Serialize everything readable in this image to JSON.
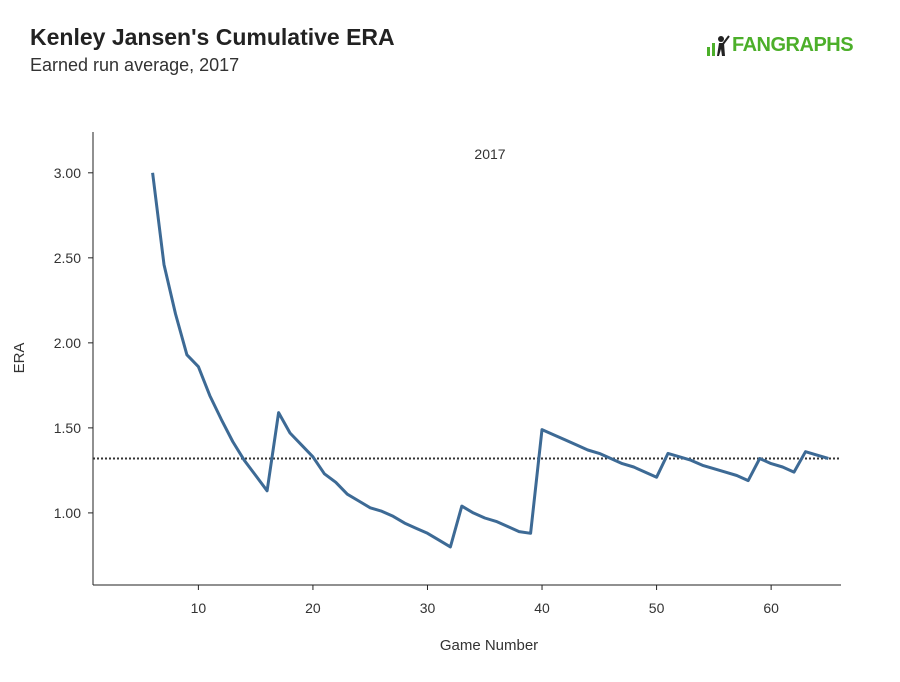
{
  "header": {
    "title": "Kenley Jansen's Cumulative ERA",
    "subtitle": "Earned run average, 2017",
    "logo_text": "FANGRAPHS"
  },
  "chart_data": {
    "type": "line",
    "title": "Kenley Jansen's Cumulative ERA",
    "subtitle": "Earned run average, 2017",
    "xlabel": "Game Number",
    "ylabel": "ERA",
    "annotation": "2017",
    "xlim": [
      0.8,
      66.1
    ],
    "ylim": [
      0.576,
      3.24
    ],
    "xticks": [
      10,
      20,
      30,
      40,
      50,
      60
    ],
    "yticks": [
      1.0,
      1.5,
      2.0,
      2.5,
      3.0
    ],
    "ytick_labels": [
      "1.00",
      "1.50",
      "2.00",
      "2.50",
      "3.00"
    ],
    "reference_line": {
      "value": 1.32,
      "style": "dotted"
    },
    "series": [
      {
        "name": "2017",
        "color": "#3d6a95",
        "x": [
          6,
          7,
          8,
          9,
          10,
          11,
          12,
          13,
          14,
          15,
          16,
          17,
          18,
          19,
          20,
          21,
          22,
          23,
          24,
          25,
          26,
          27,
          28,
          29,
          30,
          31,
          32,
          33,
          34,
          35,
          36,
          37,
          38,
          39,
          40,
          41,
          42,
          43,
          44,
          45,
          46,
          47,
          48,
          49,
          50,
          51,
          52,
          53,
          54,
          55,
          56,
          57,
          58,
          59,
          60,
          61,
          62,
          63,
          64,
          65
        ],
        "values": [
          3.0,
          2.46,
          2.17,
          1.93,
          1.86,
          1.69,
          1.55,
          1.42,
          1.31,
          1.22,
          1.13,
          1.59,
          1.47,
          1.4,
          1.33,
          1.23,
          1.18,
          1.11,
          1.07,
          1.03,
          1.01,
          0.98,
          0.94,
          0.91,
          0.88,
          0.84,
          0.8,
          1.04,
          1.0,
          0.97,
          0.95,
          0.92,
          0.89,
          0.88,
          1.49,
          1.46,
          1.43,
          1.4,
          1.37,
          1.35,
          1.32,
          1.29,
          1.27,
          1.24,
          1.21,
          1.35,
          1.33,
          1.31,
          1.28,
          1.26,
          1.24,
          1.22,
          1.19,
          1.32,
          1.29,
          1.27,
          1.24,
          1.36,
          1.34,
          1.32
        ]
      }
    ]
  }
}
